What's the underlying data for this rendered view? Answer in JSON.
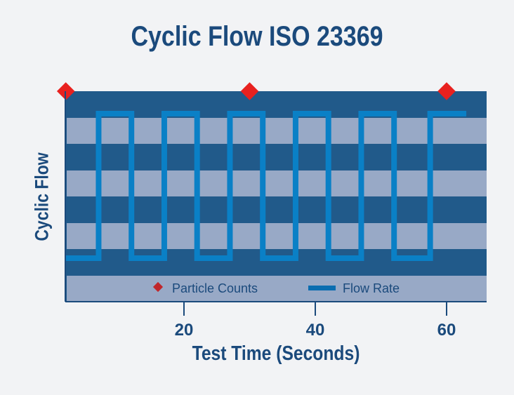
{
  "chart_data": {
    "type": "line",
    "title": "Cyclic Flow ISO 23369",
    "xlabel": "Test Time (Seconds)",
    "ylabel": "Cyclic Flow",
    "xticks": [
      20,
      40,
      60
    ],
    "xlim": [
      2,
      66
    ],
    "legend": "bottom-inside",
    "series": [
      {
        "name": "Particle Counts",
        "marker": "diamond",
        "color": "#e8211f",
        "x": [
          2,
          30,
          60
        ]
      },
      {
        "name": "Flow Rate",
        "style": "square-wave",
        "color": "#0a80c6",
        "x": [
          2,
          7,
          7,
          12,
          12,
          17,
          17,
          22,
          22,
          27,
          27,
          32,
          32,
          37,
          37,
          42,
          42,
          47,
          47,
          52,
          52,
          57.5,
          57.5,
          63
        ],
        "y": [
          0,
          0,
          1,
          1,
          0,
          0,
          1,
          1,
          0,
          0,
          1,
          1,
          0,
          0,
          1,
          1,
          0,
          0,
          1,
          1,
          0,
          0,
          1,
          1
        ]
      }
    ],
    "colors": {
      "plot_background": "#215a8a",
      "stripes": "#98a9c6",
      "text": "#1b4a7c"
    }
  }
}
